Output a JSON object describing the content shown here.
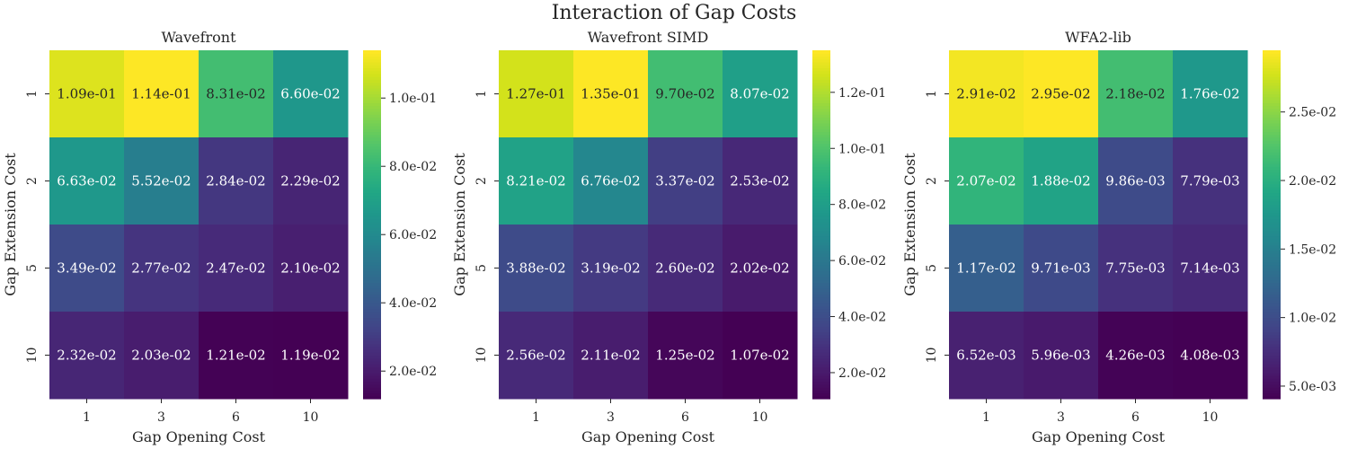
{
  "figure": {
    "title": "Interaction of Gap Costs"
  },
  "chart_data": [
    {
      "type": "heatmap",
      "title": "Wavefront",
      "xlabel": "Gap Opening Cost",
      "ylabel": "Gap Extension Cost",
      "x": [
        "1",
        "3",
        "6",
        "10"
      ],
      "y": [
        "1",
        "2",
        "5",
        "10"
      ],
      "values": [
        [
          0.109,
          0.114,
          0.0831,
          0.066
        ],
        [
          0.0663,
          0.0552,
          0.0284,
          0.0229
        ],
        [
          0.0349,
          0.0277,
          0.0247,
          0.021
        ],
        [
          0.0232,
          0.0203,
          0.0121,
          0.0119
        ]
      ],
      "cell_labels": [
        [
          "1.09e-01",
          "1.14e-01",
          "8.31e-02",
          "6.60e-02"
        ],
        [
          "6.63e-02",
          "5.52e-02",
          "2.84e-02",
          "2.29e-02"
        ],
        [
          "3.49e-02",
          "2.77e-02",
          "2.47e-02",
          "2.10e-02"
        ],
        [
          "2.32e-02",
          "2.03e-02",
          "1.21e-02",
          "1.19e-02"
        ]
      ],
      "colormap": "viridis",
      "colorbar": {
        "min": 0.0119,
        "max": 0.114,
        "ticks": [
          0.02,
          0.04,
          0.06,
          0.08,
          0.1
        ],
        "tick_labels": [
          "2.0e-02",
          "4.0e-02",
          "6.0e-02",
          "8.0e-02",
          "1.0e-01"
        ]
      }
    },
    {
      "type": "heatmap",
      "title": "Wavefront SIMD",
      "xlabel": "Gap Opening Cost",
      "ylabel": "Gap Extension Cost",
      "x": [
        "1",
        "3",
        "6",
        "10"
      ],
      "y": [
        "1",
        "2",
        "5",
        "10"
      ],
      "values": [
        [
          0.127,
          0.135,
          0.097,
          0.0807
        ],
        [
          0.0821,
          0.0676,
          0.0337,
          0.0253
        ],
        [
          0.0388,
          0.0319,
          0.026,
          0.0202
        ],
        [
          0.0256,
          0.0211,
          0.0125,
          0.0107
        ]
      ],
      "cell_labels": [
        [
          "1.27e-01",
          "1.35e-01",
          "9.70e-02",
          "8.07e-02"
        ],
        [
          "8.21e-02",
          "6.76e-02",
          "3.37e-02",
          "2.53e-02"
        ],
        [
          "3.88e-02",
          "3.19e-02",
          "2.60e-02",
          "2.02e-02"
        ],
        [
          "2.56e-02",
          "2.11e-02",
          "1.25e-02",
          "1.07e-02"
        ]
      ],
      "colormap": "viridis",
      "colorbar": {
        "min": 0.0107,
        "max": 0.135,
        "ticks": [
          0.02,
          0.04,
          0.06,
          0.08,
          0.1,
          0.12
        ],
        "tick_labels": [
          "2.0e-02",
          "4.0e-02",
          "6.0e-02",
          "8.0e-02",
          "1.0e-01",
          "1.2e-01"
        ]
      }
    },
    {
      "type": "heatmap",
      "title": "WFA2-lib",
      "xlabel": "Gap Opening Cost",
      "ylabel": "Gap Extension Cost",
      "x": [
        "1",
        "3",
        "6",
        "10"
      ],
      "y": [
        "1",
        "2",
        "5",
        "10"
      ],
      "values": [
        [
          0.0291,
          0.0295,
          0.0218,
          0.0176
        ],
        [
          0.0207,
          0.0188,
          0.00986,
          0.00779
        ],
        [
          0.0117,
          0.00971,
          0.00775,
          0.00714
        ],
        [
          0.00652,
          0.00596,
          0.00426,
          0.00408
        ]
      ],
      "cell_labels": [
        [
          "2.91e-02",
          "2.95e-02",
          "2.18e-02",
          "1.76e-02"
        ],
        [
          "2.07e-02",
          "1.88e-02",
          "9.86e-03",
          "7.79e-03"
        ],
        [
          "1.17e-02",
          "9.71e-03",
          "7.75e-03",
          "7.14e-03"
        ],
        [
          "6.52e-03",
          "5.96e-03",
          "4.26e-03",
          "4.08e-03"
        ]
      ],
      "colormap": "viridis",
      "colorbar": {
        "min": 0.00408,
        "max": 0.0295,
        "ticks": [
          0.005,
          0.01,
          0.015,
          0.02,
          0.025
        ],
        "tick_labels": [
          "5.0e-03",
          "1.0e-02",
          "1.5e-02",
          "2.0e-02",
          "2.5e-02"
        ]
      }
    }
  ]
}
